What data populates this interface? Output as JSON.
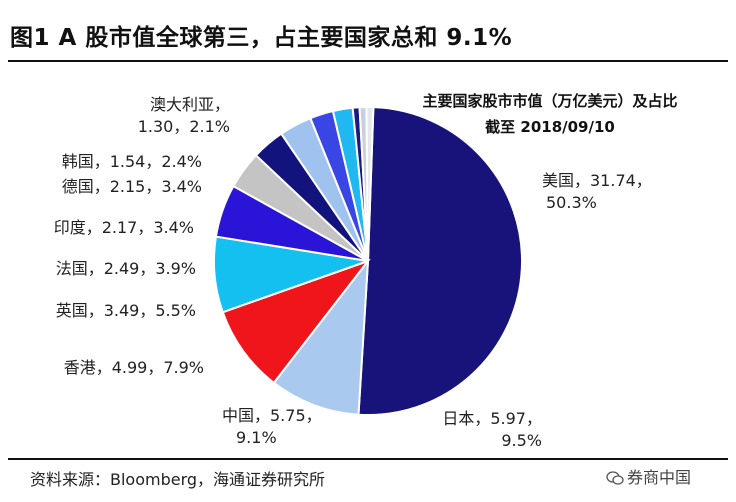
{
  "figure": {
    "title": "图1  A 股市值全球第三，占主要国家总和 9.1%",
    "subtitle_line1": "主要国家股市市值（万亿美元）及占比",
    "subtitle_line2": "截至 2018/09/10",
    "source": "资料来源：Bloomberg，海通证券研究所",
    "watermark": "券商中国"
  },
  "chart_data": {
    "type": "pie",
    "title": "主要国家股市市值（万亿美元）及占比 截至 2018/09/10",
    "slices": [
      {
        "name": "美国",
        "value": 31.74,
        "percent": "50.3%",
        "color": "#17137a"
      },
      {
        "name": "日本",
        "value": 5.97,
        "percent": "9.5%",
        "color": "#a9c9ef"
      },
      {
        "name": "中国",
        "value": 5.75,
        "percent": "9.1%",
        "color": "#f0141b"
      },
      {
        "name": "香港",
        "value": 4.99,
        "percent": "7.9%",
        "color": "#14c0f0"
      },
      {
        "name": "英国",
        "value": 3.49,
        "percent": "5.5%",
        "color": "#2a14d8"
      },
      {
        "name": "法国",
        "value": 2.49,
        "percent": "3.9%",
        "color": "#c4c4c4"
      },
      {
        "name": "印度",
        "value": 2.17,
        "percent": "3.4%",
        "color": "#13137e"
      },
      {
        "name": "德国",
        "value": 2.15,
        "percent": "3.4%",
        "color": "#a0c2ef"
      },
      {
        "name": "韩国",
        "value": 1.54,
        "percent": "2.4%",
        "color": "#3a46e4"
      },
      {
        "name": "澳大利亚",
        "value": 1.3,
        "percent": "2.1%",
        "color": "#20b8f0"
      },
      {
        "name": "",
        "value": 0.45,
        "percent": "",
        "color": "#1a1a7e"
      },
      {
        "name": "",
        "value": 0.45,
        "percent": "",
        "color": "#c8cfe0"
      },
      {
        "name": "",
        "value": 0.45,
        "percent": "",
        "color": "#e6e6ee"
      }
    ],
    "labels": [
      {
        "line1": "美国，31.74，",
        "line2": "50.3%"
      },
      {
        "line1": "日本，5.97，",
        "line2": "9.5%"
      },
      {
        "line1": "中国，5.75，",
        "line2": "9.1%"
      },
      {
        "line1": "香港，4.99，7.9%",
        "line2": ""
      },
      {
        "line1": "英国，3.49，5.5%",
        "line2": ""
      },
      {
        "line1": "法国，2.49，3.9%",
        "line2": ""
      },
      {
        "line1": "印度，2.17，3.4%",
        "line2": ""
      },
      {
        "line1": "德国，2.15，3.4%",
        "line2": ""
      },
      {
        "line1": "韩国，1.54，2.4%",
        "line2": ""
      },
      {
        "line1": "澳大利亚，",
        "line2": "1.30，2.1%"
      }
    ]
  }
}
